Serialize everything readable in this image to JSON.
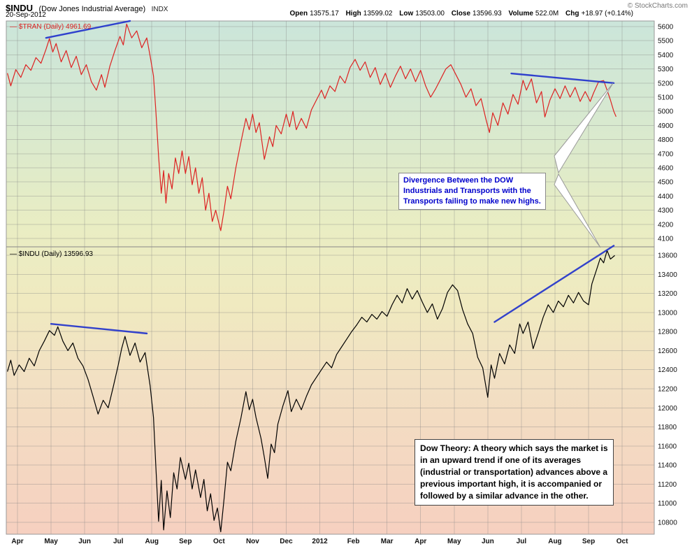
{
  "header": {
    "symbol": "$INDU",
    "name": "(Dow Jones Industrial Average)",
    "exchange": "INDX",
    "date": "20-Sep-2012",
    "copyright": "© StockCharts.com",
    "quote": [
      {
        "label": "Open",
        "value": "13575.17"
      },
      {
        "label": "High",
        "value": "13599.02"
      },
      {
        "label": "Low",
        "value": "13503.00"
      },
      {
        "label": "Close",
        "value": "13596.93"
      },
      {
        "label": "Volume",
        "value": "522.0M"
      },
      {
        "label": "Chg",
        "value": "+18.97 (+0.14%)"
      }
    ]
  },
  "annotations": {
    "divergence": {
      "color": "#0000cc",
      "lines": [
        "Divergence Between the DOW",
        "Industrials and Transports with the",
        "Transports failing to make new highs."
      ]
    },
    "dow_theory": {
      "color": "#000000",
      "lines": [
        "Dow Theory: A theory which says the market is",
        "in an upward trend if one of its averages",
        "(industrial or transportation) advances above a",
        "previous important high, it is accompanied or",
        "followed by a similar advance in the other."
      ]
    }
  },
  "chart_data": {
    "type": "line",
    "title": "$INDU (Dow Jones Industrial Average) INDX",
    "trendline_color": "#2233cc",
    "x_axis": {
      "unit": "month index, 0 = Apr 2011 tick",
      "labels": [
        "Apr",
        "May",
        "Jun",
        "Jul",
        "Aug",
        "Sep",
        "Oct",
        "Nov",
        "Dec",
        "2012",
        "Feb",
        "Mar",
        "Apr",
        "May",
        "Jun",
        "Jul",
        "Aug",
        "Sep",
        "Oct"
      ]
    },
    "panels": [
      {
        "name": "$TRAN (Daily)",
        "legend": "— $TRAN (Daily) 4961.69",
        "last_value": 4961.69,
        "color": "#dd2222",
        "ylim": [
          4100,
          5600
        ],
        "tick_step": 100,
        "trendlines": [
          [
            [
              0.85,
              5520
            ],
            [
              3.35,
              5640
            ]
          ],
          [
            [
              14.7,
              5268
            ],
            [
              17.75,
              5200
            ]
          ]
        ],
        "points": [
          [
            -0.3,
            5270
          ],
          [
            -0.2,
            5180
          ],
          [
            -0.05,
            5295
          ],
          [
            0.1,
            5240
          ],
          [
            0.25,
            5330
          ],
          [
            0.4,
            5290
          ],
          [
            0.55,
            5380
          ],
          [
            0.7,
            5340
          ],
          [
            0.85,
            5440
          ],
          [
            0.95,
            5515
          ],
          [
            1.05,
            5420
          ],
          [
            1.15,
            5480
          ],
          [
            1.3,
            5350
          ],
          [
            1.45,
            5430
          ],
          [
            1.6,
            5310
          ],
          [
            1.75,
            5390
          ],
          [
            1.9,
            5260
          ],
          [
            2.05,
            5330
          ],
          [
            2.2,
            5210
          ],
          [
            2.35,
            5150
          ],
          [
            2.5,
            5260
          ],
          [
            2.6,
            5170
          ],
          [
            2.75,
            5320
          ],
          [
            2.9,
            5430
          ],
          [
            3.05,
            5530
          ],
          [
            3.15,
            5470
          ],
          [
            3.25,
            5618
          ],
          [
            3.4,
            5520
          ],
          [
            3.55,
            5570
          ],
          [
            3.7,
            5450
          ],
          [
            3.85,
            5520
          ],
          [
            3.95,
            5390
          ],
          [
            4.05,
            5250
          ],
          [
            4.12,
            5000
          ],
          [
            4.2,
            4680
          ],
          [
            4.28,
            4420
          ],
          [
            4.35,
            4580
          ],
          [
            4.42,
            4350
          ],
          [
            4.5,
            4560
          ],
          [
            4.6,
            4450
          ],
          [
            4.7,
            4670
          ],
          [
            4.8,
            4560
          ],
          [
            4.9,
            4720
          ],
          [
            5.0,
            4560
          ],
          [
            5.1,
            4680
          ],
          [
            5.2,
            4480
          ],
          [
            5.3,
            4600
          ],
          [
            5.4,
            4420
          ],
          [
            5.5,
            4530
          ],
          [
            5.6,
            4300
          ],
          [
            5.7,
            4420
          ],
          [
            5.8,
            4220
          ],
          [
            5.9,
            4300
          ],
          [
            6.05,
            4155
          ],
          [
            6.15,
            4300
          ],
          [
            6.25,
            4470
          ],
          [
            6.35,
            4380
          ],
          [
            6.5,
            4600
          ],
          [
            6.65,
            4780
          ],
          [
            6.8,
            4950
          ],
          [
            6.9,
            4870
          ],
          [
            7.0,
            4980
          ],
          [
            7.1,
            4850
          ],
          [
            7.2,
            4920
          ],
          [
            7.35,
            4660
          ],
          [
            7.5,
            4820
          ],
          [
            7.6,
            4750
          ],
          [
            7.7,
            4900
          ],
          [
            7.85,
            4840
          ],
          [
            8.0,
            4980
          ],
          [
            8.1,
            4890
          ],
          [
            8.2,
            5000
          ],
          [
            8.3,
            4870
          ],
          [
            8.45,
            4950
          ],
          [
            8.6,
            4880
          ],
          [
            8.75,
            5010
          ],
          [
            8.9,
            5080
          ],
          [
            9.05,
            5150
          ],
          [
            9.15,
            5090
          ],
          [
            9.3,
            5180
          ],
          [
            9.45,
            5140
          ],
          [
            9.6,
            5250
          ],
          [
            9.75,
            5200
          ],
          [
            9.9,
            5310
          ],
          [
            10.05,
            5368
          ],
          [
            10.2,
            5290
          ],
          [
            10.35,
            5350
          ],
          [
            10.5,
            5240
          ],
          [
            10.65,
            5310
          ],
          [
            10.8,
            5190
          ],
          [
            10.95,
            5270
          ],
          [
            11.1,
            5170
          ],
          [
            11.25,
            5250
          ],
          [
            11.4,
            5320
          ],
          [
            11.55,
            5230
          ],
          [
            11.7,
            5300
          ],
          [
            11.85,
            5210
          ],
          [
            12.0,
            5290
          ],
          [
            12.15,
            5180
          ],
          [
            12.3,
            5100
          ],
          [
            12.45,
            5160
          ],
          [
            12.6,
            5230
          ],
          [
            12.75,
            5300
          ],
          [
            12.9,
            5330
          ],
          [
            13.05,
            5260
          ],
          [
            13.2,
            5190
          ],
          [
            13.35,
            5100
          ],
          [
            13.5,
            5160
          ],
          [
            13.65,
            5040
          ],
          [
            13.8,
            5090
          ],
          [
            13.95,
            4940
          ],
          [
            14.05,
            4850
          ],
          [
            14.15,
            4990
          ],
          [
            14.3,
            4900
          ],
          [
            14.45,
            5060
          ],
          [
            14.6,
            4980
          ],
          [
            14.75,
            5120
          ],
          [
            14.9,
            5050
          ],
          [
            15.05,
            5220
          ],
          [
            15.15,
            5150
          ],
          [
            15.3,
            5230
          ],
          [
            15.45,
            5060
          ],
          [
            15.6,
            5140
          ],
          [
            15.7,
            4960
          ],
          [
            15.85,
            5080
          ],
          [
            16.0,
            5160
          ],
          [
            16.15,
            5090
          ],
          [
            16.3,
            5180
          ],
          [
            16.45,
            5100
          ],
          [
            16.6,
            5170
          ],
          [
            16.75,
            5070
          ],
          [
            16.9,
            5140
          ],
          [
            17.05,
            5070
          ],
          [
            17.15,
            5130
          ],
          [
            17.3,
            5210
          ],
          [
            17.45,
            5218
          ],
          [
            17.55,
            5150
          ],
          [
            17.65,
            5080
          ],
          [
            17.75,
            5000
          ],
          [
            17.82,
            4962
          ]
        ]
      },
      {
        "name": "$INDU (Daily)",
        "legend": "— $INDU (Daily) 13596.93",
        "last_value": 13596.93,
        "color": "#000000",
        "ylim": [
          10800,
          13600
        ],
        "tick_step": 200,
        "trendlines": [
          [
            [
              1.0,
              12880
            ],
            [
              3.85,
              12780
            ]
          ],
          [
            [
              14.2,
              12900
            ],
            [
              17.75,
              13700
            ]
          ]
        ],
        "points": [
          [
            -0.3,
            12380
          ],
          [
            -0.2,
            12500
          ],
          [
            -0.1,
            12340
          ],
          [
            0.05,
            12450
          ],
          [
            0.2,
            12380
          ],
          [
            0.35,
            12520
          ],
          [
            0.5,
            12440
          ],
          [
            0.65,
            12600
          ],
          [
            0.8,
            12700
          ],
          [
            0.95,
            12810
          ],
          [
            1.1,
            12760
          ],
          [
            1.2,
            12850
          ],
          [
            1.35,
            12700
          ],
          [
            1.5,
            12600
          ],
          [
            1.65,
            12680
          ],
          [
            1.8,
            12520
          ],
          [
            1.95,
            12440
          ],
          [
            2.1,
            12300
          ],
          [
            2.25,
            12120
          ],
          [
            2.4,
            11935
          ],
          [
            2.55,
            12080
          ],
          [
            2.7,
            12000
          ],
          [
            2.85,
            12220
          ],
          [
            3.0,
            12450
          ],
          [
            3.1,
            12620
          ],
          [
            3.2,
            12750
          ],
          [
            3.35,
            12550
          ],
          [
            3.5,
            12680
          ],
          [
            3.65,
            12480
          ],
          [
            3.8,
            12580
          ],
          [
            3.95,
            12230
          ],
          [
            4.05,
            11900
          ],
          [
            4.12,
            11380
          ],
          [
            4.2,
            10810
          ],
          [
            4.28,
            11240
          ],
          [
            4.35,
            10720
          ],
          [
            4.45,
            11130
          ],
          [
            4.55,
            10850
          ],
          [
            4.65,
            11320
          ],
          [
            4.75,
            11150
          ],
          [
            4.85,
            11480
          ],
          [
            5.0,
            11250
          ],
          [
            5.1,
            11420
          ],
          [
            5.2,
            11150
          ],
          [
            5.3,
            11350
          ],
          [
            5.45,
            11060
          ],
          [
            5.55,
            11250
          ],
          [
            5.65,
            10920
          ],
          [
            5.75,
            11100
          ],
          [
            5.85,
            10820
          ],
          [
            5.95,
            10950
          ],
          [
            6.05,
            10700
          ],
          [
            6.15,
            11050
          ],
          [
            6.25,
            11430
          ],
          [
            6.35,
            11340
          ],
          [
            6.5,
            11650
          ],
          [
            6.65,
            11890
          ],
          [
            6.8,
            12170
          ],
          [
            6.9,
            11980
          ],
          [
            7.0,
            12090
          ],
          [
            7.1,
            11900
          ],
          [
            7.25,
            11680
          ],
          [
            7.35,
            11480
          ],
          [
            7.45,
            11260
          ],
          [
            7.55,
            11620
          ],
          [
            7.65,
            11530
          ],
          [
            7.75,
            11830
          ],
          [
            7.9,
            12020
          ],
          [
            8.05,
            12180
          ],
          [
            8.15,
            11960
          ],
          [
            8.3,
            12090
          ],
          [
            8.45,
            11980
          ],
          [
            8.6,
            12120
          ],
          [
            8.75,
            12240
          ],
          [
            8.9,
            12320
          ],
          [
            9.05,
            12400
          ],
          [
            9.2,
            12480
          ],
          [
            9.35,
            12420
          ],
          [
            9.5,
            12560
          ],
          [
            9.65,
            12640
          ],
          [
            9.8,
            12720
          ],
          [
            9.95,
            12800
          ],
          [
            10.1,
            12870
          ],
          [
            10.25,
            12950
          ],
          [
            10.4,
            12900
          ],
          [
            10.55,
            12980
          ],
          [
            10.7,
            12930
          ],
          [
            10.85,
            13010
          ],
          [
            11.0,
            12960
          ],
          [
            11.15,
            13080
          ],
          [
            11.3,
            13180
          ],
          [
            11.45,
            13100
          ],
          [
            11.6,
            13250
          ],
          [
            11.75,
            13140
          ],
          [
            11.9,
            13230
          ],
          [
            12.05,
            13110
          ],
          [
            12.2,
            13000
          ],
          [
            12.35,
            13090
          ],
          [
            12.5,
            12930
          ],
          [
            12.65,
            13040
          ],
          [
            12.8,
            13210
          ],
          [
            12.95,
            13290
          ],
          [
            13.1,
            13230
          ],
          [
            13.25,
            13030
          ],
          [
            13.4,
            12880
          ],
          [
            13.55,
            12780
          ],
          [
            13.7,
            12530
          ],
          [
            13.85,
            12420
          ],
          [
            14.0,
            12110
          ],
          [
            14.1,
            12450
          ],
          [
            14.2,
            12310
          ],
          [
            14.35,
            12570
          ],
          [
            14.5,
            12460
          ],
          [
            14.65,
            12660
          ],
          [
            14.8,
            12570
          ],
          [
            14.95,
            12880
          ],
          [
            15.05,
            12780
          ],
          [
            15.2,
            12900
          ],
          [
            15.35,
            12620
          ],
          [
            15.5,
            12780
          ],
          [
            15.65,
            12950
          ],
          [
            15.8,
            13080
          ],
          [
            15.95,
            13000
          ],
          [
            16.1,
            13120
          ],
          [
            16.25,
            13060
          ],
          [
            16.4,
            13180
          ],
          [
            16.55,
            13100
          ],
          [
            16.7,
            13210
          ],
          [
            16.85,
            13120
          ],
          [
            17.0,
            13080
          ],
          [
            17.1,
            13300
          ],
          [
            17.25,
            13460
          ],
          [
            17.35,
            13570
          ],
          [
            17.45,
            13520
          ],
          [
            17.55,
            13650
          ],
          [
            17.65,
            13560
          ],
          [
            17.78,
            13597
          ]
        ]
      }
    ]
  }
}
